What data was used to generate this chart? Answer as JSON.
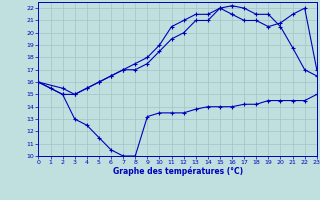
{
  "title": "Graphe des températures (°C)",
  "bg_color": "#c0e0e0",
  "grid_color": "#a0c4c4",
  "line_color": "#0000bb",
  "xlim": [
    0,
    23
  ],
  "ylim": [
    10,
    22.5
  ],
  "xticks": [
    0,
    1,
    2,
    3,
    4,
    5,
    6,
    7,
    8,
    9,
    10,
    11,
    12,
    13,
    14,
    15,
    16,
    17,
    18,
    19,
    20,
    21,
    22,
    23
  ],
  "yticks": [
    10,
    11,
    12,
    13,
    14,
    15,
    16,
    17,
    18,
    19,
    20,
    21,
    22
  ],
  "s1_x": [
    0,
    1,
    2,
    3,
    4,
    5,
    6,
    7,
    8,
    9,
    10,
    11,
    12,
    13,
    14,
    15,
    16,
    17,
    18,
    19,
    20,
    21,
    22,
    23
  ],
  "s1_y": [
    16,
    15.5,
    15,
    13,
    12.5,
    11.5,
    10.5,
    10,
    10,
    13.2,
    13.5,
    13.5,
    13.5,
    13.8,
    14,
    14,
    14,
    14.2,
    14.2,
    14.5,
    14.5,
    14.5,
    14.5,
    15
  ],
  "s2_x": [
    0,
    2,
    3,
    4,
    5,
    6,
    7,
    8,
    9,
    10,
    11,
    12,
    13,
    14,
    15,
    16,
    17,
    18,
    19,
    20,
    21,
    22,
    23
  ],
  "s2_y": [
    16,
    15.5,
    15,
    15.5,
    16,
    16.5,
    17,
    17.5,
    18,
    19,
    20.5,
    21,
    21.5,
    21.5,
    22,
    22.2,
    22,
    21.5,
    21.5,
    20.5,
    18.8,
    17,
    16.5
  ],
  "s3_x": [
    0,
    2,
    3,
    4,
    5,
    6,
    7,
    8,
    9,
    10,
    11,
    12,
    13,
    14,
    15,
    16,
    17,
    18,
    19,
    20,
    21,
    22,
    23
  ],
  "s3_y": [
    16,
    15,
    15,
    15.5,
    16,
    16.5,
    17,
    17,
    17.5,
    18.5,
    19.5,
    20,
    21,
    21,
    22,
    21.5,
    21,
    21,
    20.5,
    20.8,
    21.5,
    22,
    17
  ]
}
